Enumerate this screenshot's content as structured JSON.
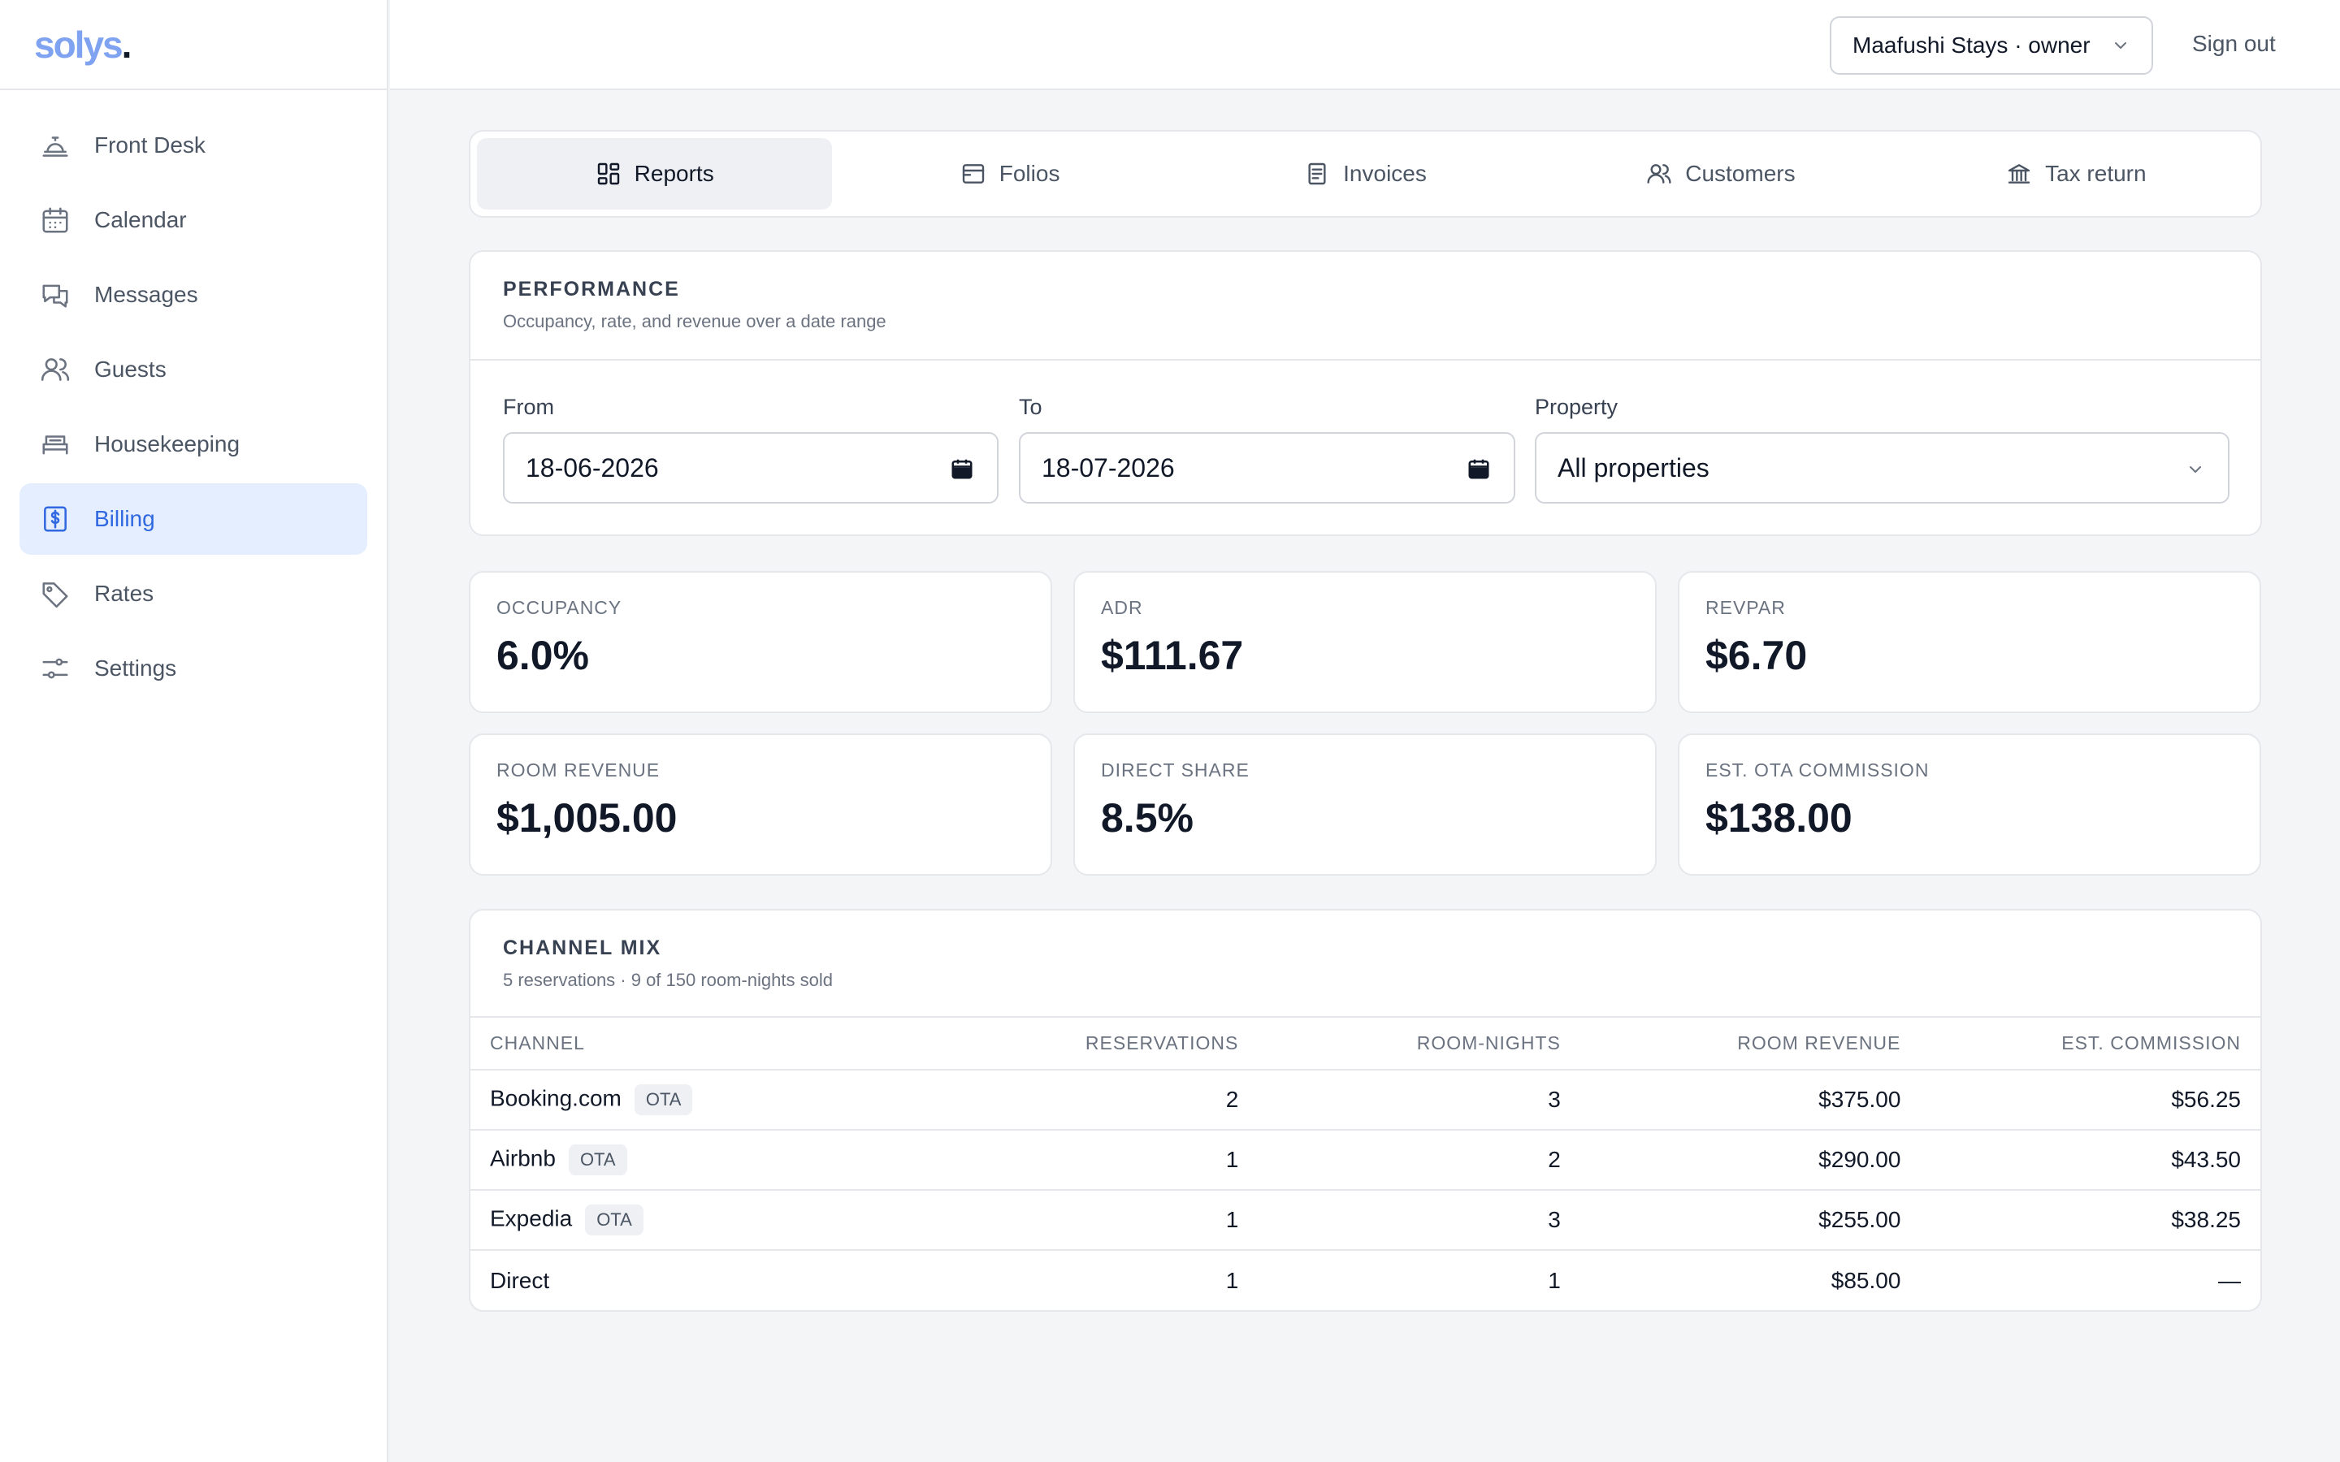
{
  "brand": {
    "name": "solys",
    "dot": "."
  },
  "sidebar": {
    "items": [
      {
        "label": "Front Desk",
        "icon": "bell-icon",
        "active": false
      },
      {
        "label": "Calendar",
        "icon": "calendar-icon",
        "active": false
      },
      {
        "label": "Messages",
        "icon": "chat-icon",
        "active": false
      },
      {
        "label": "Guests",
        "icon": "users-icon",
        "active": false
      },
      {
        "label": "Housekeeping",
        "icon": "bed-icon",
        "active": false
      },
      {
        "label": "Billing",
        "icon": "receipt-dollar-icon",
        "active": true
      },
      {
        "label": "Rates",
        "icon": "tag-icon",
        "active": false
      },
      {
        "label": "Settings",
        "icon": "sliders-icon",
        "active": false
      }
    ]
  },
  "header": {
    "account": "Maafushi Stays · owner",
    "sign_out": "Sign out"
  },
  "tabs": [
    {
      "label": "Reports",
      "icon": "grid-icon",
      "active": true
    },
    {
      "label": "Folios",
      "icon": "folio-icon",
      "active": false
    },
    {
      "label": "Invoices",
      "icon": "document-icon",
      "active": false
    },
    {
      "label": "Customers",
      "icon": "users-icon",
      "active": false
    },
    {
      "label": "Tax return",
      "icon": "bank-icon",
      "active": false
    }
  ],
  "performance": {
    "title": "PERFORMANCE",
    "subtitle": "Occupancy, rate, and revenue over a date range",
    "from_label": "From",
    "from_value": "18-06-2026",
    "to_label": "To",
    "to_value": "18-07-2026",
    "property_label": "Property",
    "property_value": "All properties"
  },
  "metrics": [
    {
      "label": "OCCUPANCY",
      "value": "6.0%"
    },
    {
      "label": "ADR",
      "value": "$111.67"
    },
    {
      "label": "REVPAR",
      "value": "$6.70"
    },
    {
      "label": "ROOM REVENUE",
      "value": "$1,005.00"
    },
    {
      "label": "DIRECT SHARE",
      "value": "8.5%"
    },
    {
      "label": "EST. OTA COMMISSION",
      "value": "$138.00"
    }
  ],
  "channel_mix": {
    "title": "CHANNEL MIX",
    "subtitle": "5 reservations · 9 of 150 room-nights sold",
    "columns": [
      "CHANNEL",
      "RESERVATIONS",
      "ROOM-NIGHTS",
      "ROOM REVENUE",
      "EST. COMMISSION"
    ],
    "rows": [
      {
        "channel": "Booking.com",
        "badge": "OTA",
        "reservations": "2",
        "room_nights": "3",
        "revenue": "$375.00",
        "commission": "$56.25"
      },
      {
        "channel": "Airbnb",
        "badge": "OTA",
        "reservations": "1",
        "room_nights": "2",
        "revenue": "$290.00",
        "commission": "$43.50"
      },
      {
        "channel": "Expedia",
        "badge": "OTA",
        "reservations": "1",
        "room_nights": "3",
        "revenue": "$255.00",
        "commission": "$38.25"
      },
      {
        "channel": "Direct",
        "badge": "",
        "reservations": "1",
        "room_nights": "1",
        "revenue": "$85.00",
        "commission": "—"
      }
    ]
  },
  "colors": {
    "accent": "#2f68e0",
    "accent_bg": "#e5eeff",
    "brand": "#7fa3f0",
    "page_bg": "#f4f5f7"
  }
}
